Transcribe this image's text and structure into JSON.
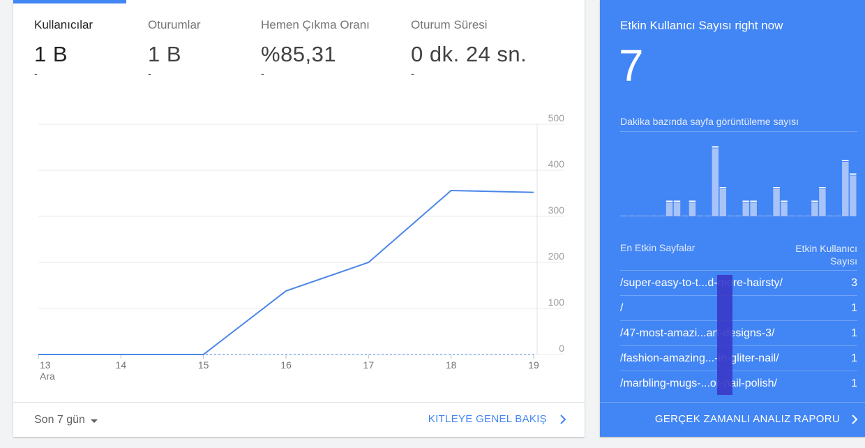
{
  "metrics": [
    {
      "label": "Kullanıcılar",
      "value": "1 B",
      "change": "-"
    },
    {
      "label": "Oturumlar",
      "value": "1 B",
      "change": "-"
    },
    {
      "label": "Hemen Çıkma Oranı",
      "value": "%85,31",
      "change": "-"
    },
    {
      "label": "Oturum Süresi",
      "value": "0 dk. 24 sn.",
      "change": "-"
    }
  ],
  "chart_data": {
    "type": "line",
    "categories": [
      "13",
      "14",
      "15",
      "16",
      "17",
      "18",
      "19"
    ],
    "x_sublabel": "Ara",
    "series": [
      {
        "values": [
          0,
          0,
          0,
          138,
          200,
          356,
          352
        ]
      }
    ],
    "comparison_baseline": [
      0,
      0,
      0,
      0,
      0,
      0,
      0
    ],
    "y_ticks": [
      "0",
      "100",
      "200",
      "300",
      "400",
      "500"
    ],
    "ylim": [
      0,
      500
    ],
    "grid": true,
    "color": "#4a86e8"
  },
  "footer": {
    "date_range": "Son 7 gün",
    "overview_link": "KITLEYE GENEL BAKIŞ"
  },
  "realtime": {
    "title": "Etkin Kullanıcı Sayısı right now",
    "count": "7",
    "pageviews_label": "Dakika bazında sayfa görüntüleme sayısı",
    "pageviews_per_minute": [
      0,
      0,
      0,
      0,
      0,
      0,
      1,
      1,
      0,
      1,
      0,
      0,
      5,
      2,
      0,
      0,
      1,
      1,
      0,
      0,
      2,
      1,
      0,
      0,
      0,
      1,
      2,
      0,
      0,
      4,
      3
    ],
    "pages_header": "En Etkin Sayfalar",
    "users_header_line1": "Etkin Kullanıcı",
    "users_header_line2": "Sayısı",
    "pages": [
      {
        "path": "/super-easy-to-t...d-more-hairsty/",
        "users": "3"
      },
      {
        "path": "/",
        "users": "1"
      },
      {
        "path": "/47-most-amazi...art-designs-3/",
        "users": "1"
      },
      {
        "path": "/fashion-amazing...-in-gliter-nail/",
        "users": "1"
      },
      {
        "path": "/marbling-mugs-...or-nail-polish/",
        "users": "1"
      }
    ],
    "report_link": "GERÇEK ZAMANLI ANALIZ RAPORU"
  },
  "colors": {
    "accent": "#4285f4",
    "realtime_bg": "#4285f4",
    "bars": "#a7c3f8"
  }
}
